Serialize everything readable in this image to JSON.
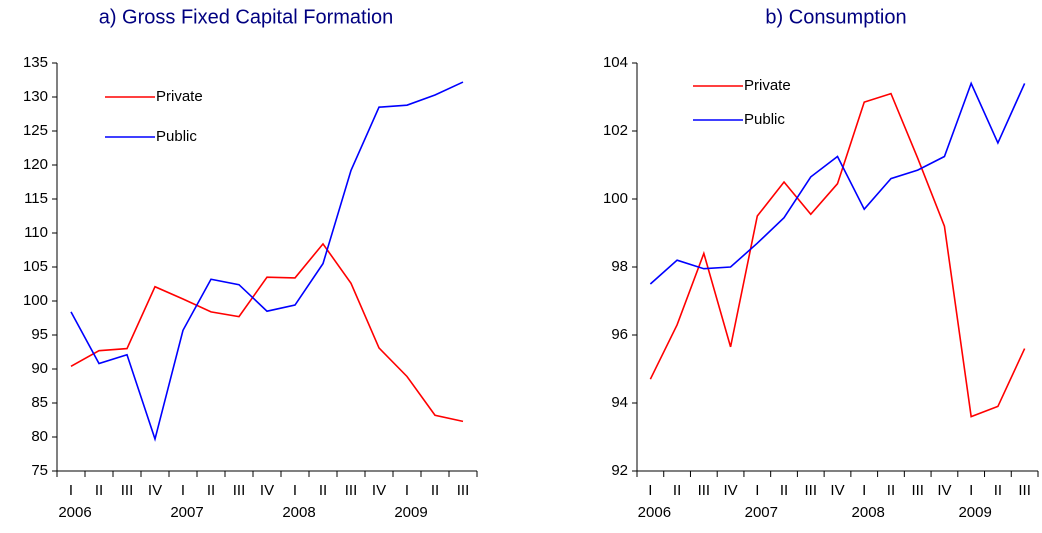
{
  "chart_data": [
    {
      "type": "line",
      "title": "a) Gross Fixed Capital Formation",
      "categories": [
        "I",
        "II",
        "III",
        "IV",
        "I",
        "II",
        "III",
        "IV",
        "I",
        "II",
        "III",
        "IV",
        "I",
        "II",
        "III"
      ],
      "years": [
        "2006",
        "2007",
        "2008",
        "2009"
      ],
      "series": [
        {
          "name": "Private",
          "color": "#ff0000",
          "values": [
            90.4,
            92.7,
            93.0,
            102.1,
            100.3,
            98.4,
            97.7,
            103.5,
            103.4,
            108.4,
            102.6,
            93.1,
            88.9,
            83.2,
            82.3
          ]
        },
        {
          "name": "Public",
          "color": "#0000ff",
          "values": [
            98.4,
            90.8,
            92.1,
            79.7,
            95.7,
            103.2,
            102.4,
            98.5,
            99.4,
            105.5,
            119.2,
            128.5,
            128.8,
            130.3,
            132.2
          ]
        }
      ],
      "ylim": [
        75,
        135
      ],
      "yticks": [
        75,
        80,
        85,
        90,
        95,
        100,
        105,
        110,
        115,
        120,
        125,
        130,
        135
      ],
      "legend": "upper left"
    },
    {
      "type": "line",
      "title": "b) Consumption",
      "categories": [
        "I",
        "II",
        "III",
        "IV",
        "I",
        "II",
        "III",
        "IV",
        "I",
        "II",
        "III",
        "IV",
        "I",
        "II",
        "III"
      ],
      "years": [
        "2006",
        "2007",
        "2008",
        "2009"
      ],
      "series": [
        {
          "name": "Private",
          "color": "#ff0000",
          "values": [
            94.7,
            96.3,
            98.4,
            95.65,
            99.5,
            100.5,
            99.55,
            100.45,
            102.85,
            103.1,
            101.2,
            99.2,
            93.6,
            93.9,
            95.6
          ]
        },
        {
          "name": "Public",
          "color": "#0000ff",
          "values": [
            97.5,
            98.2,
            97.95,
            98.0,
            98.7,
            99.45,
            100.65,
            101.25,
            99.7,
            100.6,
            100.85,
            101.25,
            103.4,
            101.65,
            103.4
          ]
        }
      ],
      "ylim": [
        92,
        104
      ],
      "yticks": [
        92,
        94,
        96,
        98,
        100,
        102,
        104
      ],
      "legend": "upper left"
    }
  ]
}
